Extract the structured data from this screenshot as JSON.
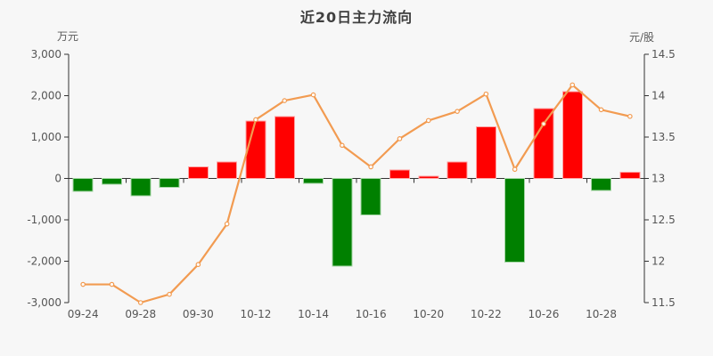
{
  "title": "近20日主力流向",
  "left_axis": {
    "unit": "万元",
    "tick_labels": [
      "3,000",
      "2,000",
      "1,000",
      "0",
      "-1,000",
      "-2,000",
      "-3,000"
    ],
    "min": -3000,
    "max": 3000
  },
  "right_axis": {
    "unit": "元/股",
    "tick_labels": [
      "14.5",
      "14",
      "13.5",
      "13",
      "12.5",
      "12",
      "11.5"
    ],
    "min": 11.5,
    "max": 14.5
  },
  "colors": {
    "background": "#f7f7f7",
    "axis": "#333333",
    "tick_text": "#555555",
    "bar_positive": "#ff0000",
    "bar_positive_border": "#ffa2a2",
    "bar_negative": "#008000",
    "bar_negative_border": "#a4d6a4",
    "line": "#f29b51",
    "marker_fill": "#ffffff"
  },
  "chart_data": {
    "type": "bar",
    "subtype": "bar+line dual-axis combo",
    "title": "近20日主力流向",
    "categories": [
      "09-24",
      "",
      "09-28",
      "",
      "09-30",
      "",
      "10-12",
      "",
      "10-14",
      "",
      "10-16",
      "",
      "10-20",
      "",
      "10-22",
      "",
      "10-26",
      "",
      "10-28",
      ""
    ],
    "x_tick_labels": [
      "09-24",
      "09-28",
      "09-30",
      "10-12",
      "10-14",
      "10-16",
      "10-20",
      "10-22",
      "10-26",
      "10-28"
    ],
    "series": [
      {
        "name": "主力流向",
        "type": "bar",
        "axis": "left",
        "unit": "万元",
        "values": [
          -310,
          -140,
          -420,
          -220,
          280,
          400,
          1390,
          1500,
          -120,
          -2120,
          -880,
          200,
          50,
          400,
          1250,
          -2020,
          1690,
          2100,
          -290,
          150
        ]
      },
      {
        "name": "元/股",
        "type": "line",
        "axis": "right",
        "unit": "元/股",
        "values": [
          11.72,
          11.72,
          11.5,
          11.6,
          11.96,
          12.45,
          13.71,
          13.94,
          14.01,
          13.4,
          13.14,
          13.48,
          13.7,
          13.81,
          14.02,
          13.11,
          13.66,
          14.13,
          13.83,
          13.75
        ]
      }
    ],
    "left_ylim": [
      -3000,
      3000
    ],
    "right_ylim": [
      11.5,
      14.5
    ],
    "grid": false,
    "legend": "none"
  }
}
